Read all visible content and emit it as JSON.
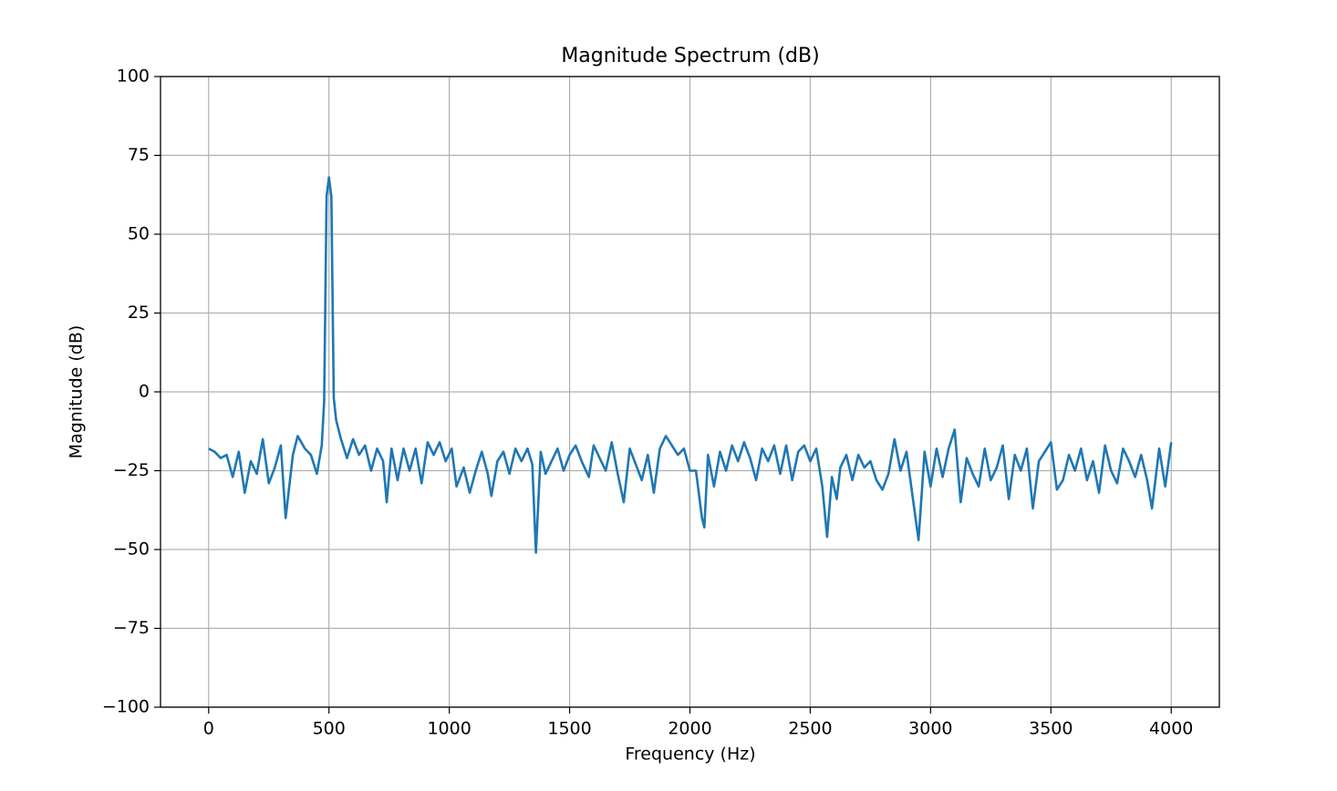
{
  "chart_data": {
    "type": "line",
    "title": "Magnitude Spectrum (dB)",
    "xlabel": "Frequency (Hz)",
    "ylabel": "Magnitude (dB)",
    "color": "#1f77b4",
    "grid": true,
    "xlim": [
      -200,
      4200
    ],
    "ylim": [
      -100,
      100
    ],
    "xticks": [
      0,
      500,
      1000,
      1500,
      2000,
      2500,
      3000,
      3500,
      4000
    ],
    "yticks": [
      {
        "value": -100,
        "label": "−100"
      },
      {
        "value": -75,
        "label": "−75"
      },
      {
        "value": -50,
        "label": "−50"
      },
      {
        "value": -25,
        "label": "−25"
      },
      0,
      25,
      50,
      75,
      100
    ],
    "x": [
      0,
      25,
      50,
      75,
      100,
      125,
      150,
      175,
      200,
      225,
      250,
      275,
      300,
      320,
      350,
      370,
      400,
      425,
      450,
      470,
      480,
      490,
      500,
      510,
      520,
      530,
      550,
      575,
      600,
      625,
      650,
      675,
      700,
      725,
      740,
      760,
      785,
      810,
      835,
      860,
      885,
      910,
      935,
      960,
      985,
      1010,
      1030,
      1060,
      1085,
      1110,
      1135,
      1160,
      1175,
      1200,
      1225,
      1250,
      1275,
      1300,
      1325,
      1345,
      1360,
      1380,
      1400,
      1425,
      1450,
      1475,
      1500,
      1525,
      1550,
      1580,
      1600,
      1625,
      1650,
      1675,
      1700,
      1725,
      1750,
      1775,
      1800,
      1825,
      1850,
      1875,
      1900,
      1925,
      1950,
      1975,
      2000,
      2025,
      2050,
      2060,
      2075,
      2100,
      2125,
      2150,
      2175,
      2200,
      2225,
      2250,
      2275,
      2300,
      2325,
      2350,
      2375,
      2400,
      2425,
      2450,
      2475,
      2500,
      2525,
      2550,
      2570,
      2590,
      2610,
      2625,
      2650,
      2675,
      2700,
      2725,
      2750,
      2775,
      2800,
      2825,
      2850,
      2875,
      2900,
      2925,
      2950,
      2975,
      3000,
      3025,
      3050,
      3075,
      3100,
      3125,
      3150,
      3175,
      3200,
      3225,
      3250,
      3275,
      3300,
      3325,
      3350,
      3375,
      3400,
      3425,
      3450,
      3475,
      3500,
      3525,
      3550,
      3575,
      3600,
      3625,
      3650,
      3675,
      3700,
      3725,
      3750,
      3775,
      3800,
      3825,
      3850,
      3875,
      3900,
      3920,
      3950,
      3975,
      4000
    ],
    "values": [
      -18,
      -19,
      -21,
      -20,
      -27,
      -19,
      -32,
      -22,
      -26,
      -15,
      -29,
      -24,
      -17,
      -40,
      -20,
      -14,
      -18,
      -20,
      -26,
      -17,
      -3,
      62,
      68,
      62,
      -2,
      -9,
      -15,
      -21,
      -15,
      -20,
      -17,
      -25,
      -18,
      -22,
      -35,
      -18,
      -28,
      -18,
      -25,
      -18,
      -29,
      -16,
      -20,
      -16,
      -22,
      -18,
      -30,
      -24,
      -32,
      -25,
      -19,
      -26,
      -33,
      -22,
      -19,
      -26,
      -18,
      -22,
      -18,
      -23,
      -51,
      -19,
      -26,
      -22,
      -18,
      -25,
      -20,
      -17,
      -22,
      -27,
      -17,
      -21,
      -25,
      -16,
      -26,
      -35,
      -18,
      -23,
      -28,
      -20,
      -32,
      -18,
      -14,
      -17,
      -20,
      -18,
      -25,
      -25,
      -40,
      -43,
      -20,
      -30,
      -19,
      -25,
      -17,
      -22,
      -16,
      -21,
      -28,
      -18,
      -22,
      -17,
      -26,
      -17,
      -28,
      -19,
      -17,
      -22,
      -18,
      -30,
      -46,
      -27,
      -34,
      -24,
      -20,
      -28,
      -20,
      -24,
      -22,
      -28,
      -31,
      -26,
      -15,
      -25,
      -19,
      -33,
      -47,
      -19,
      -30,
      -18,
      -27,
      -18,
      -12,
      -35,
      -21,
      -26,
      -30,
      -18,
      -28,
      -24,
      -17,
      -34,
      -20,
      -25,
      -18,
      -37,
      -22,
      -19,
      -16,
      -31,
      -28,
      -20,
      -25,
      -18,
      -28,
      -22,
      -32,
      -17,
      -25,
      -29,
      -18,
      -22,
      -27,
      -20,
      -28,
      -37,
      -18,
      -30,
      -16
    ]
  }
}
